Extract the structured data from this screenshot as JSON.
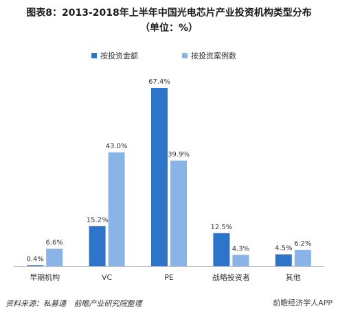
{
  "title_line1": "图表8：2013-2018年上半年中国光电芯片产业投资机构类型分布",
  "title_line2": "（单位：%）",
  "source_label": "资料来源：私募通",
  "source_org": "前瞻产业研究院整理",
  "watermark_handle": "前瞻经济学人APP",
  "colors": {
    "series1": "#2e75c9",
    "series2": "#8ab4e8",
    "axis": "#bfbfbf",
    "text": "#333333"
  },
  "chart_data": {
    "type": "bar",
    "categories": [
      "早期机构",
      "VC",
      "PE",
      "战略投资者",
      "其他"
    ],
    "series": [
      {
        "name": "按投资金额",
        "values": [
          0.4,
          15.2,
          67.4,
          12.5,
          4.5
        ],
        "labels": [
          "0.4%",
          "15.2%",
          "67.4%",
          "12.5%",
          "4.5%"
        ]
      },
      {
        "name": "按投资案例数",
        "values": [
          6.6,
          43.0,
          39.9,
          4.3,
          6.2
        ],
        "labels": [
          "6.6%",
          "43.0%",
          "39.9%",
          "4.3%",
          "6.2%"
        ]
      }
    ],
    "ylim": [
      0,
      70
    ],
    "legend_position": "top"
  }
}
